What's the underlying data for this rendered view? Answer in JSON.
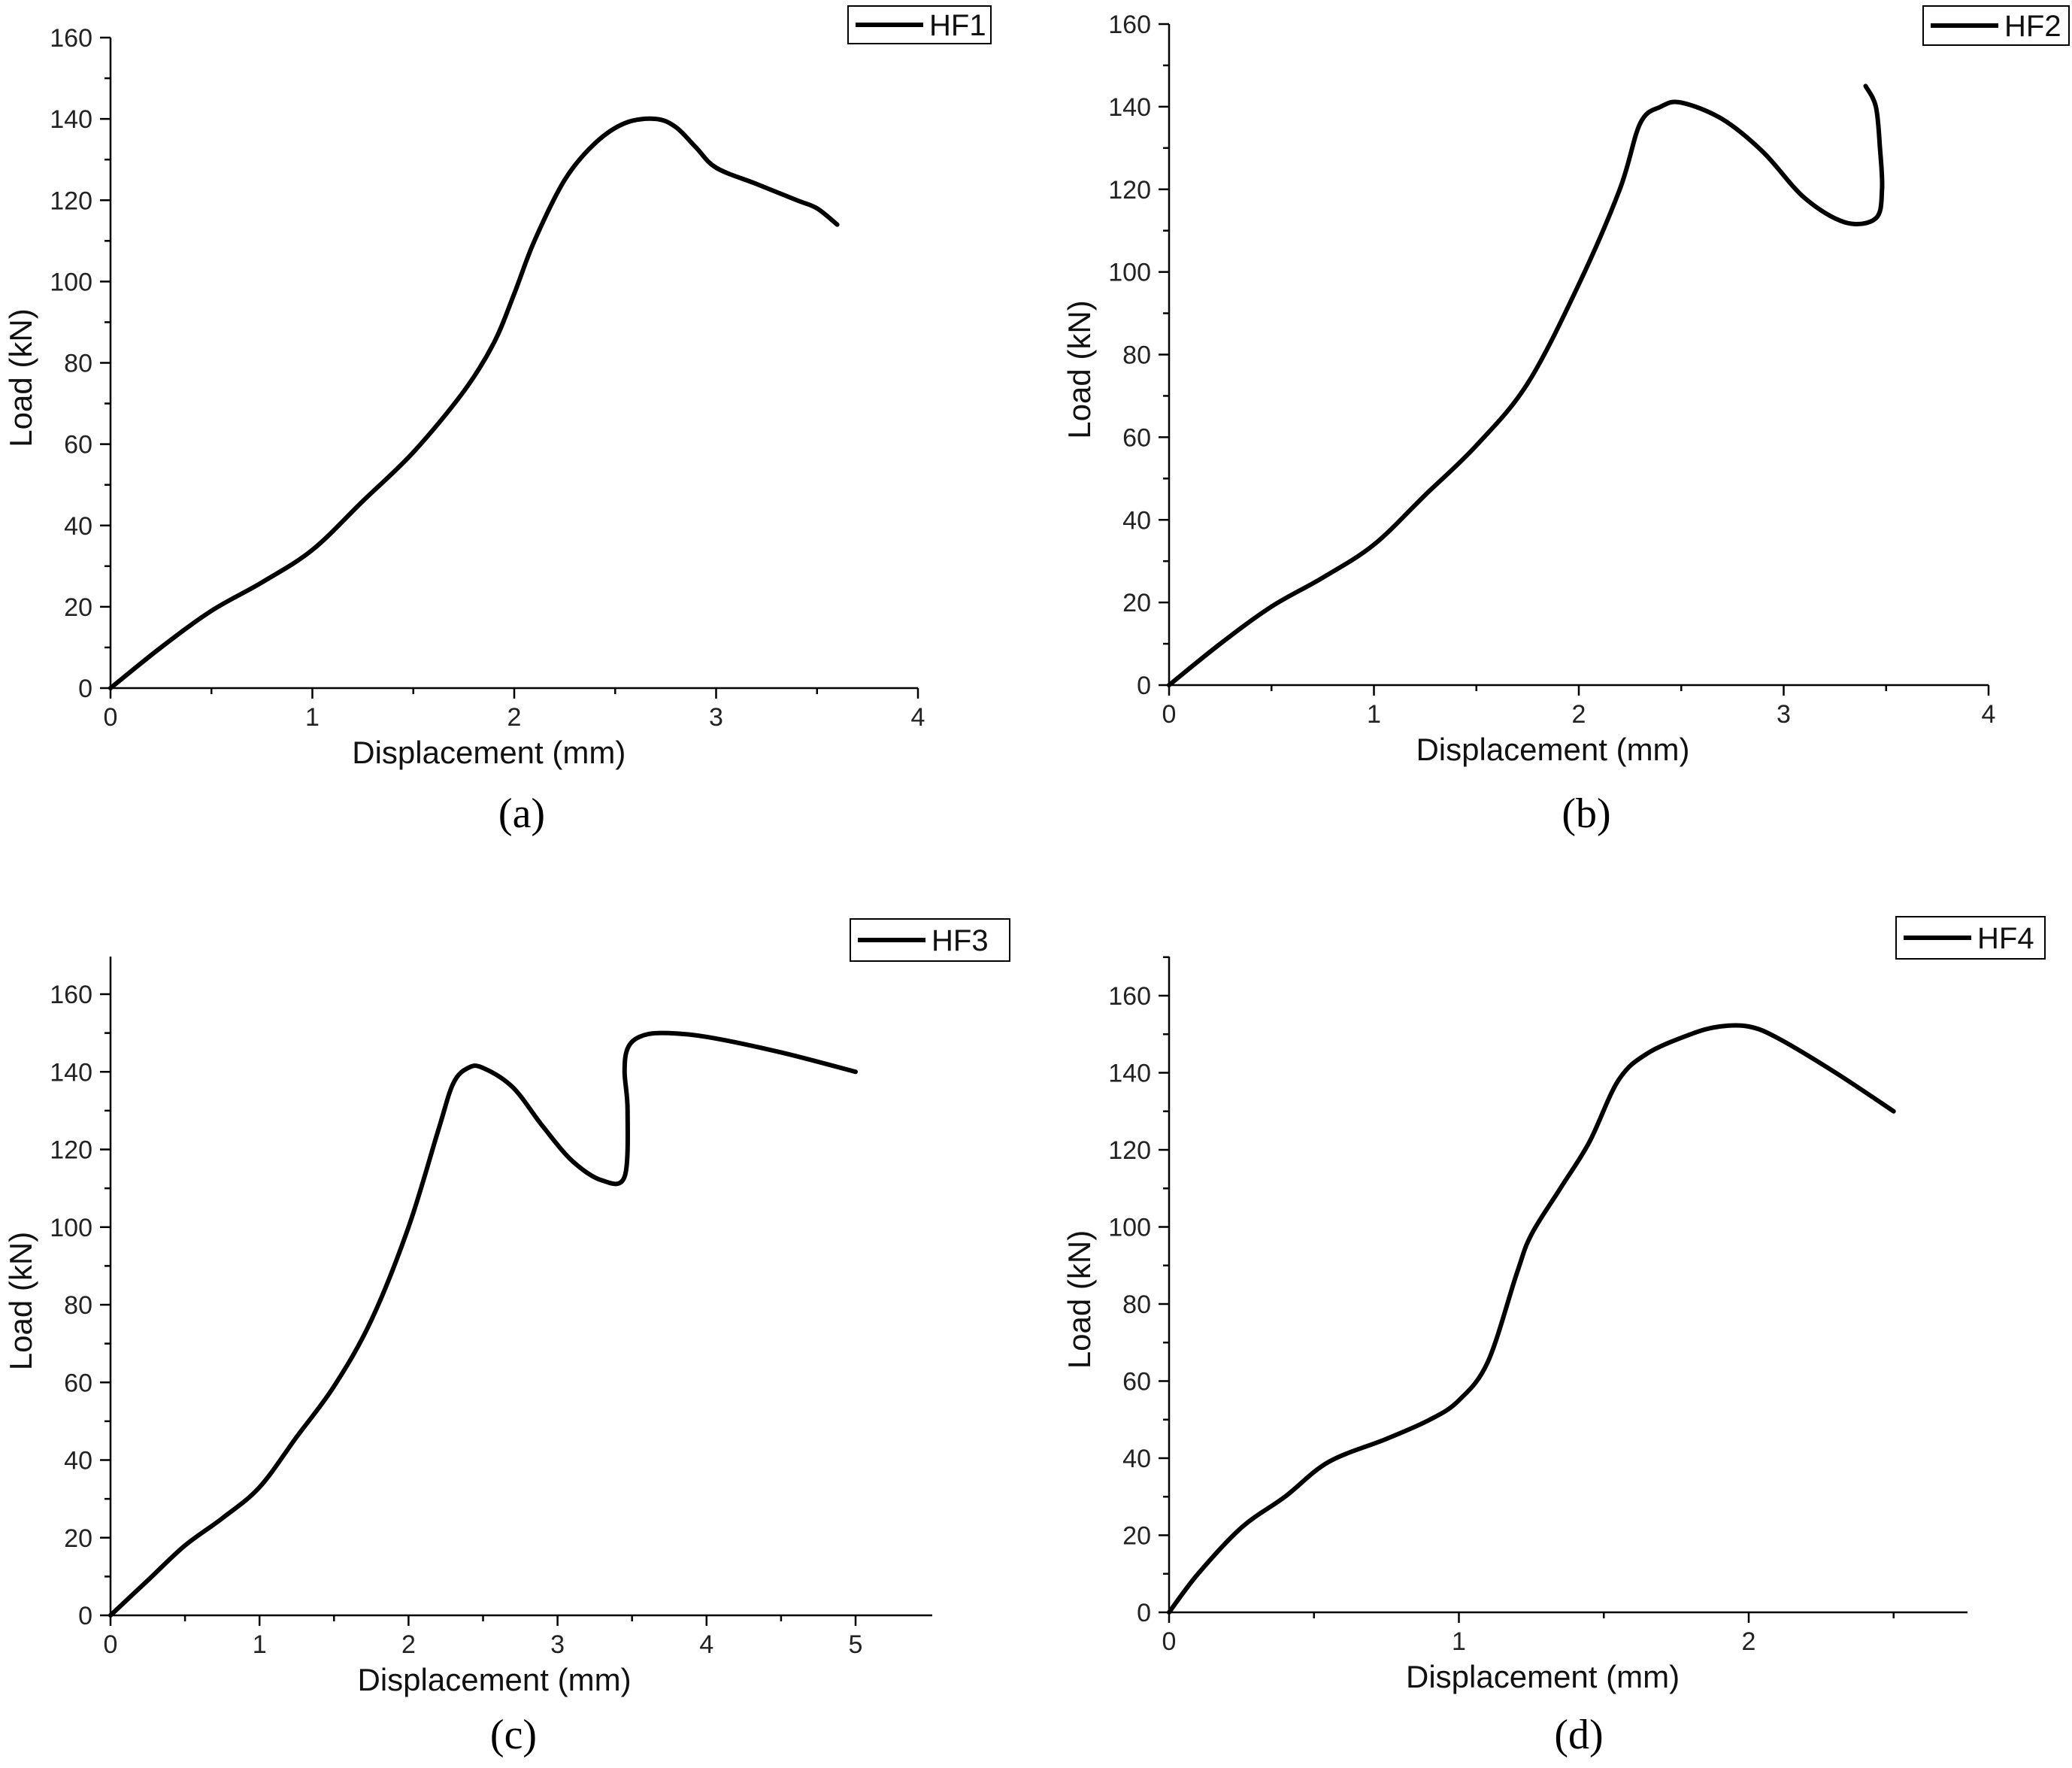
{
  "chart_data": [
    {
      "type": "line",
      "caption": "(a)",
      "xlabel": "Displacement (mm)",
      "ylabel": "Load (kN)",
      "xlim": [
        0,
        4
      ],
      "ylim": [
        0,
        160
      ],
      "xticks": [
        "0",
        "1",
        "2",
        "3",
        "4"
      ],
      "yticks": [
        "0",
        "20",
        "40",
        "60",
        "80",
        "100",
        "120",
        "140",
        "160"
      ],
      "legend_placement": "top-right",
      "series": [
        {
          "name": "HF1",
          "x": [
            0,
            0.25,
            0.5,
            0.75,
            1.0,
            1.25,
            1.5,
            1.75,
            1.9,
            2.0,
            2.1,
            2.25,
            2.4,
            2.55,
            2.7,
            2.8,
            2.9,
            3.0,
            3.2,
            3.4,
            3.5,
            3.6
          ],
          "y": [
            0,
            10,
            19,
            26,
            34,
            46,
            58,
            73,
            85,
            97,
            110,
            125,
            134,
            139,
            140,
            138,
            133,
            128,
            124,
            120,
            118,
            114
          ]
        }
      ]
    },
    {
      "type": "line",
      "caption": "(b)",
      "xlabel": "Displacement (mm)",
      "ylabel": "Load (kN)",
      "xlim": [
        0,
        4
      ],
      "ylim": [
        0,
        160
      ],
      "xticks": [
        "0",
        "1",
        "2",
        "3",
        "4"
      ],
      "yticks": [
        "0",
        "20",
        "40",
        "60",
        "80",
        "100",
        "120",
        "140",
        "160"
      ],
      "legend_placement": "top-right",
      "series": [
        {
          "name": "HF2",
          "x": [
            0,
            0.25,
            0.5,
            0.75,
            1.0,
            1.25,
            1.5,
            1.75,
            2.0,
            2.2,
            2.3,
            2.4,
            2.5,
            2.7,
            2.9,
            3.1,
            3.3,
            3.45,
            3.48,
            3.47,
            3.45,
            3.4
          ],
          "y": [
            0,
            10,
            19,
            26,
            34,
            46,
            58,
            73,
            97,
            120,
            136,
            140,
            141,
            137,
            129,
            118,
            112,
            113,
            120,
            130,
            140,
            145
          ]
        }
      ]
    },
    {
      "type": "line",
      "caption": "(c)",
      "xlabel": "Displacement (mm)",
      "ylabel": "Load (kN)",
      "xlim": [
        0,
        5.5
      ],
      "ylim": [
        0,
        170
      ],
      "xticks": [
        "0",
        "1",
        "2",
        "3",
        "4",
        "5"
      ],
      "yticks": [
        "0",
        "20",
        "40",
        "60",
        "80",
        "100",
        "120",
        "140",
        "160"
      ],
      "legend_placement": "top-right",
      "series": [
        {
          "name": "HF3",
          "x": [
            0,
            0.25,
            0.5,
            0.75,
            1.0,
            1.25,
            1.5,
            1.75,
            2.0,
            2.2,
            2.3,
            2.4,
            2.5,
            2.7,
            2.9,
            3.1,
            3.3,
            3.45,
            3.47,
            3.45,
            3.47,
            3.55,
            3.7,
            4.0,
            4.5,
            5.0
          ],
          "y": [
            0,
            9,
            18,
            25,
            33,
            46,
            59,
            76,
            100,
            125,
            137,
            141,
            141,
            136,
            126,
            117,
            112,
            113,
            130,
            140,
            146,
            149,
            150,
            149,
            145,
            140
          ]
        }
      ]
    },
    {
      "type": "line",
      "caption": "(d)",
      "xlabel": "Displacement (mm)",
      "ylabel": "Load (kN)",
      "xlim": [
        0,
        2.75
      ],
      "ylim": [
        0,
        170
      ],
      "xticks": [
        "0",
        "1",
        "2"
      ],
      "yticks": [
        "0",
        "20",
        "40",
        "60",
        "80",
        "100",
        "120",
        "140",
        "160"
      ],
      "legend_placement": "top-right",
      "series": [
        {
          "name": "HF4",
          "x": [
            0,
            0.1,
            0.25,
            0.4,
            0.55,
            0.75,
            0.9,
            1.0,
            1.1,
            1.2,
            1.25,
            1.35,
            1.45,
            1.55,
            1.65,
            1.8,
            1.9,
            2.0,
            2.1,
            2.3,
            2.5
          ],
          "y": [
            0,
            10,
            22,
            30,
            39,
            45,
            50,
            55,
            65,
            88,
            98,
            110,
            122,
            138,
            145,
            150,
            152,
            152,
            149,
            140,
            130
          ]
        }
      ]
    }
  ]
}
